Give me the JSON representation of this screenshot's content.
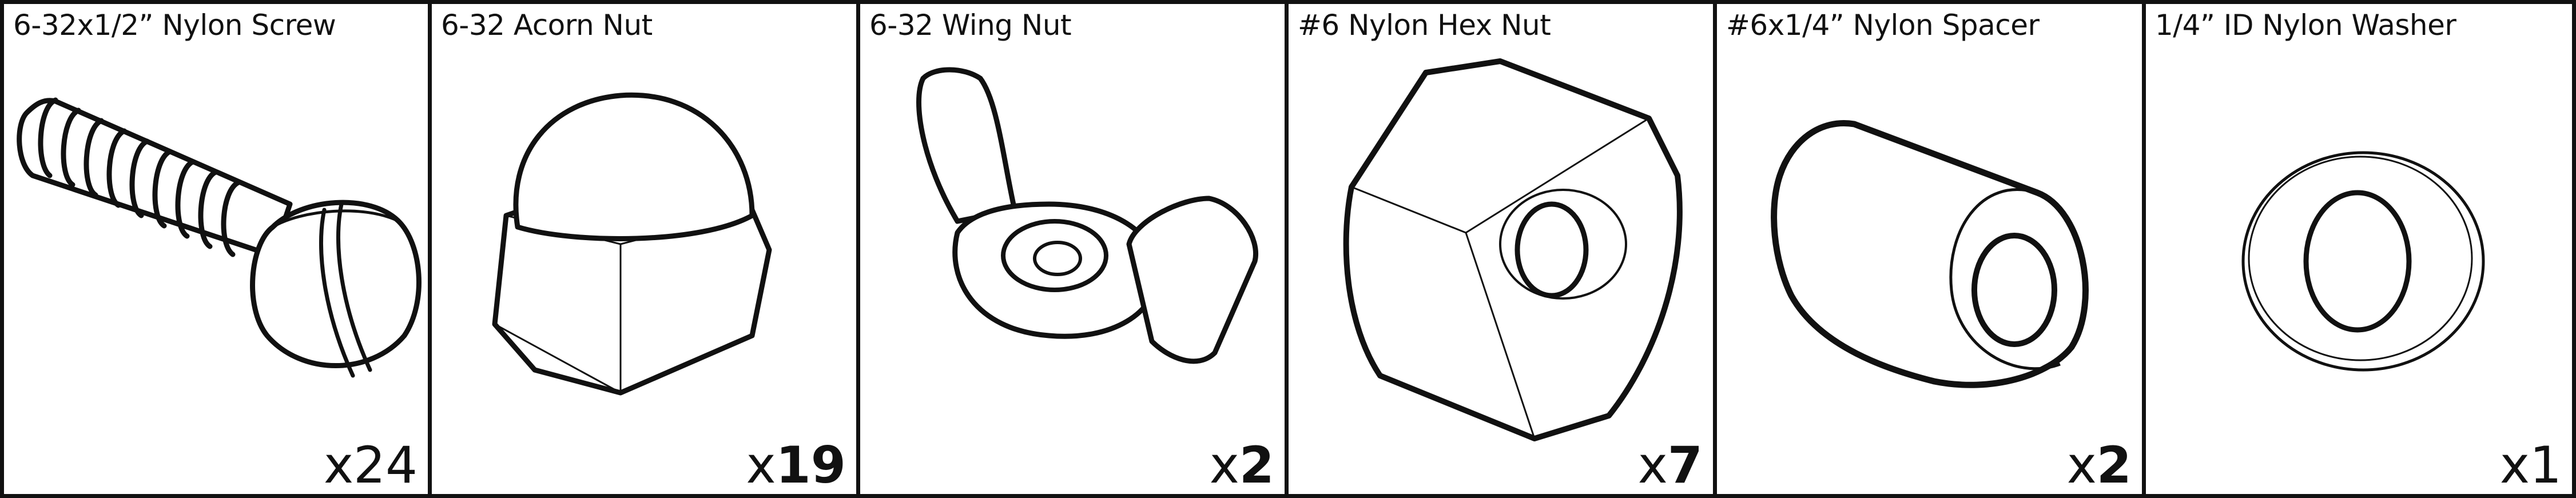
{
  "panels": [
    {
      "label": "6-32x1/2” Nylon Screw",
      "qty_x": "x",
      "qty_n": "24",
      "bold": false
    },
    {
      "label": "6-32 Acorn Nut",
      "qty_x": "x",
      "qty_n": "19",
      "bold": true
    },
    {
      "label": "6-32 Wing Nut",
      "qty_x": "x",
      "qty_n": "2",
      "bold": true
    },
    {
      "label": "#6 Nylon Hex Nut",
      "qty_x": "x",
      "qty_n": "7",
      "bold": true
    },
    {
      "label": "#6x1/4” Nylon Spacer",
      "qty_x": "x",
      "qty_n": "2",
      "bold": true
    },
    {
      "label": "1/4” ID Nylon Washer",
      "qty_x": "x",
      "qty_n": "1",
      "bold": false
    }
  ]
}
